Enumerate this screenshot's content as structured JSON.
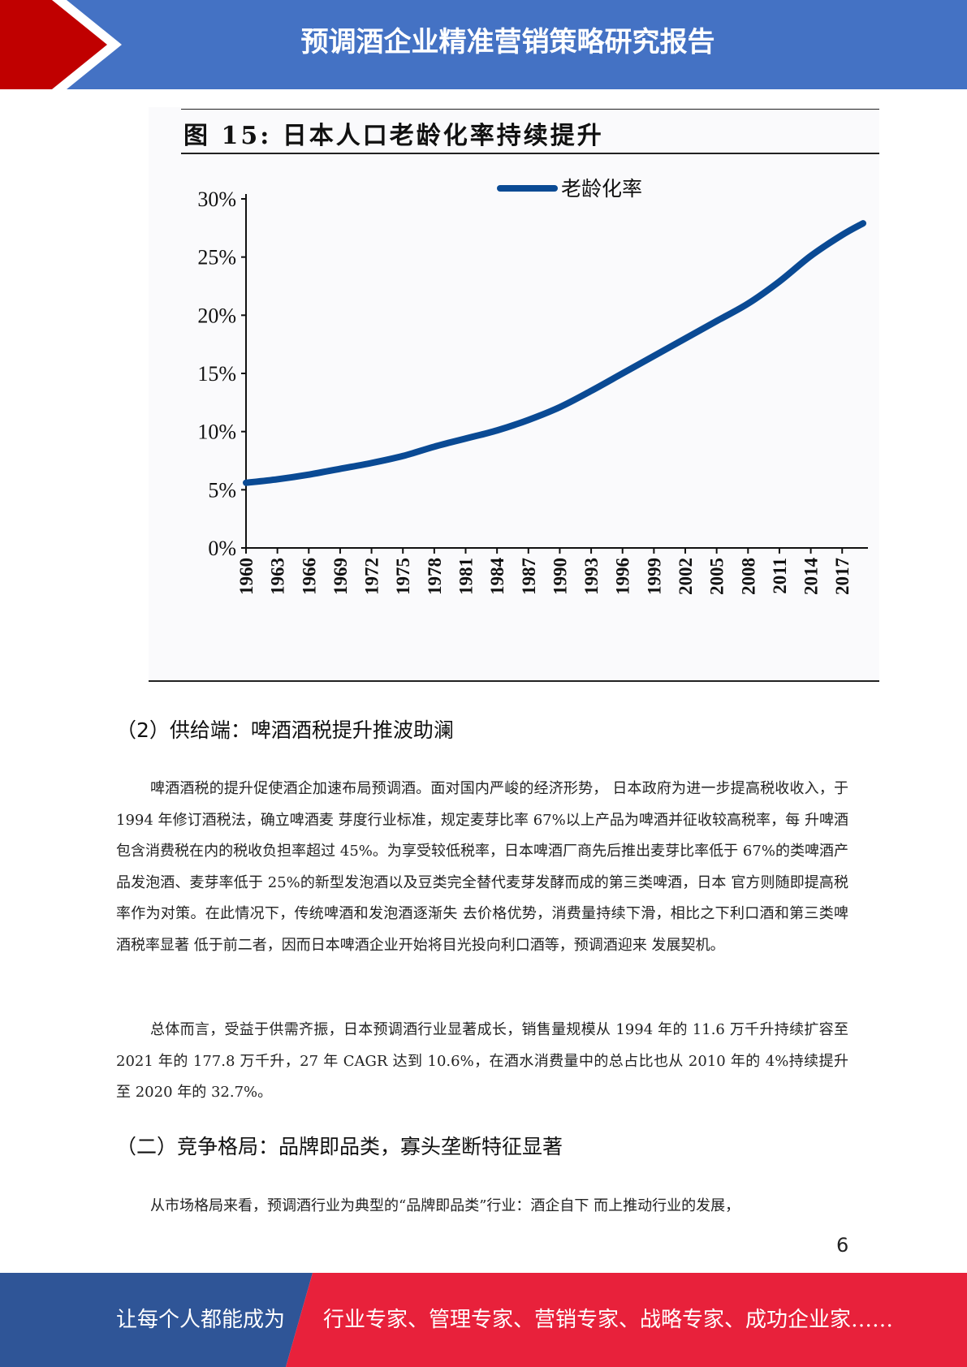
{
  "header": {
    "title": "预调酒企业精准营销策略研究报告",
    "colors": {
      "bar": "#4472c4",
      "arrow": "#c00000"
    }
  },
  "figure": {
    "title": "图 15:  日本人口老龄化率持续提升"
  },
  "chart_data": {
    "type": "line",
    "legend": "老龄化率",
    "legend_position": "top-center",
    "line_color": "#0a4a94",
    "y_ticks": [
      "0%",
      "5%",
      "10%",
      "15%",
      "20%",
      "25%",
      "30%"
    ],
    "ylim": [
      0,
      30
    ],
    "x_ticks": [
      "1960",
      "1963",
      "1966",
      "1969",
      "1972",
      "1975",
      "1978",
      "1981",
      "1984",
      "1987",
      "1990",
      "1993",
      "1996",
      "1999",
      "2002",
      "2005",
      "2008",
      "2011",
      "2014",
      "2017"
    ],
    "xlim": [
      1960,
      2019
    ],
    "series": [
      {
        "x": [
          1960,
          1963,
          1966,
          1969,
          1972,
          1975,
          1978,
          1981,
          1984,
          1987,
          1990,
          1993,
          1996,
          1999,
          2002,
          2005,
          2008,
          2011,
          2014,
          2017,
          2019
        ],
        "values": [
          5.6,
          5.9,
          6.3,
          6.8,
          7.3,
          7.9,
          8.7,
          9.4,
          10.1,
          11.0,
          12.1,
          13.5,
          15.0,
          16.5,
          18.0,
          19.5,
          21.0,
          22.9,
          25.1,
          26.9,
          27.9
        ]
      }
    ]
  },
  "section2": {
    "heading": "（2）供给端：啤酒酒税提升推波助澜",
    "para1": "啤酒酒税的提升促使酒企加速布局预调酒。面对国内严峻的经济形势， 日本政府为进一步提高税收收入，于 1994 年修订酒税法，确立啤酒麦 芽度行业标准，规定麦芽比率 67%以上产品为啤酒并征收较高税率，每 升啤酒包含消费税在内的税收负担率超过 45%。为享受较低税率，日本啤酒厂商先后推出麦芽比率低于 67%的类啤酒产品发泡酒、麦芽率低于 25%的新型发泡酒以及豆类完全替代麦芽发酵而成的第三类啤酒，日本 官方则随即提高税率作为对策。在此情况下，传统啤酒和发泡酒逐渐失 去价格优势，消费量持续下滑，相比之下利口酒和第三类啤酒税率显著 低于前二者，因而日本啤酒企业开始将目光投向利口酒等，预调酒迎来 发展契机。",
    "para2": "总体而言，受益于供需齐振，日本预调酒行业显著成长，销售量规模从 1994 年的 11.6 万千升持续扩容至 2021 年的 177.8 万千升，27 年 CAGR 达到 10.6%，在酒水消费量中的总占比也从 2010 年的 4%持续提升至 2020 年的 32.7%。"
  },
  "section3": {
    "heading": "（二）竞争格局：品牌即品类，寡头垄断特征显著",
    "para1": "从市场格局来看，预调酒行业为典型的“品牌即品类”行业：酒企自下 而上推动行业的发展，"
  },
  "page_number": "6",
  "footer": {
    "left_text": "让每个人都能成为",
    "right_text": "行业专家、管理专家、营销专家、战略专家、成功企业家……",
    "colors": {
      "left": "#2f5597",
      "right": "#e8213b"
    }
  }
}
